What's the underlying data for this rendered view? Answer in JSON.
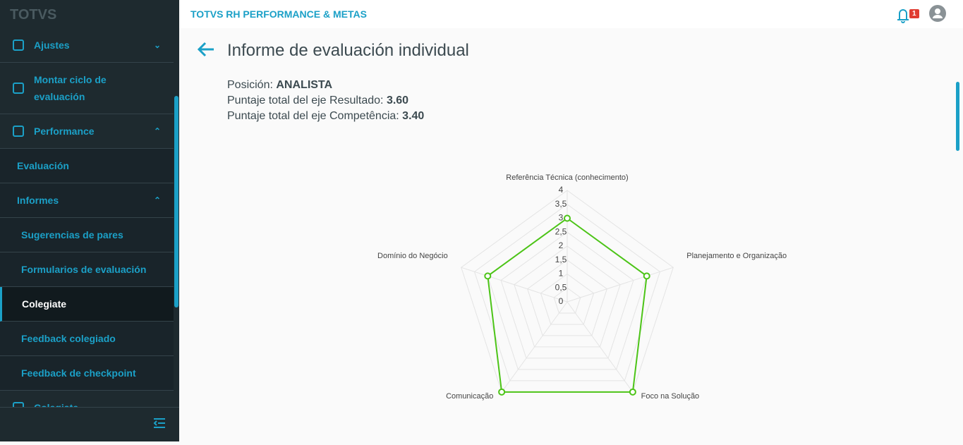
{
  "header": {
    "logo": "TOTVS",
    "app_title": "TOTVS RH PERFORMANCE & METAS",
    "notifications": "1"
  },
  "sidebar": {
    "items": [
      "Ajustes",
      "Montar ciclo de evaluación",
      "Performance",
      "Evaluación",
      "Informes",
      "Sugerencias de pares",
      "Formularios de evaluación",
      "Colegiate",
      "Feedback colegiado",
      "Feedback de checkpoint",
      "Colegiate"
    ]
  },
  "page": {
    "title": "Informe de evaluación individual",
    "info": [
      {
        "label": "Posición:",
        "value": "ANALISTA"
      },
      {
        "label": "Puntaje total del eje Resultado:",
        "value": "3.60"
      },
      {
        "label": "Puntaje total del eje Competência:",
        "value": "3.40"
      }
    ]
  },
  "chart_data": {
    "type": "radar",
    "categories": [
      "Referência Técnica (conhecimento)",
      "Planejamento e Organização",
      "Foco na Solução",
      "Comunicação",
      "Domínio do Negócio"
    ],
    "values": [
      3,
      3,
      4,
      4,
      3
    ],
    "color": "#4cc417",
    "ylim": [
      0,
      4
    ],
    "yticks": [
      0,
      {
        "value": 0.5,
        "label": "0,5"
      },
      1,
      {
        "value": 1.5,
        "label": "1,5"
      },
      2,
      {
        "value": 2.5,
        "label": "2,5"
      },
      3,
      {
        "value": 3.5,
        "label": "3,5"
      },
      4
    ],
    "grid": true
  }
}
